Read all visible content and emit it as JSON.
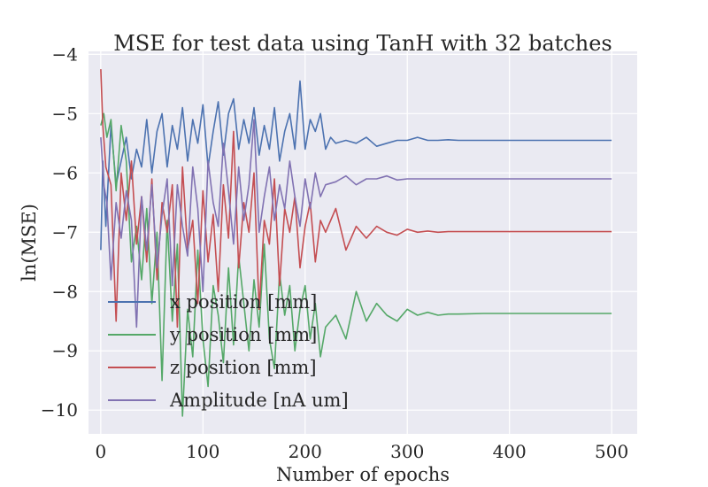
{
  "chart_data": {
    "type": "line",
    "title": "MSE for test data using TanH with 32 batches",
    "xlabel": "Number of epochs",
    "ylabel": "ln(MSE)",
    "xlim": [
      -12,
      525
    ],
    "ylim": [
      -10.4,
      -3.95
    ],
    "xticks": [
      0,
      100,
      200,
      300,
      400,
      500
    ],
    "yticks": [
      -10,
      -9,
      -8,
      -7,
      -6,
      -5,
      -4
    ],
    "xtick_labels": [
      "0",
      "100",
      "200",
      "300",
      "400",
      "500"
    ],
    "ytick_labels": [
      "−10",
      "−9",
      "−8",
      "−7",
      "−6",
      "−5",
      "−4"
    ],
    "grid": true,
    "legend_position": "lower-left",
    "series": [
      {
        "name": "x position [mm]",
        "color": "#4c72b0",
        "x": [
          0,
          2,
          5,
          10,
          15,
          20,
          25,
          30,
          35,
          40,
          45,
          50,
          55,
          60,
          65,
          70,
          75,
          80,
          85,
          90,
          95,
          100,
          105,
          110,
          115,
          120,
          125,
          130,
          135,
          140,
          145,
          150,
          155,
          160,
          165,
          170,
          175,
          180,
          185,
          190,
          195,
          200,
          205,
          210,
          215,
          220,
          225,
          230,
          240,
          250,
          260,
          270,
          280,
          290,
          300,
          310,
          320,
          330,
          340,
          350,
          375,
          400,
          450,
          500
        ],
        "y": [
          -7.3,
          -5.8,
          -6.9,
          -5.2,
          -6.2,
          -5.8,
          -5.4,
          -6.1,
          -5.6,
          -5.9,
          -5.1,
          -6.0,
          -5.3,
          -5.0,
          -5.9,
          -5.2,
          -5.6,
          -4.9,
          -5.8,
          -5.1,
          -5.5,
          -4.85,
          -5.9,
          -5.3,
          -4.8,
          -5.7,
          -5.0,
          -4.75,
          -5.6,
          -5.1,
          -5.5,
          -4.9,
          -5.7,
          -5.2,
          -5.6,
          -4.9,
          -5.8,
          -5.3,
          -5.0,
          -5.6,
          -4.45,
          -5.6,
          -5.1,
          -5.3,
          -5.0,
          -5.6,
          -5.4,
          -5.5,
          -5.45,
          -5.5,
          -5.4,
          -5.55,
          -5.5,
          -5.45,
          -5.45,
          -5.4,
          -5.45,
          -5.45,
          -5.44,
          -5.45,
          -5.45,
          -5.45,
          -5.45,
          -5.45
        ]
      },
      {
        "name": "y position [mm]",
        "color": "#55a868",
        "x": [
          0,
          3,
          6,
          10,
          15,
          20,
          25,
          30,
          35,
          40,
          45,
          50,
          55,
          60,
          65,
          70,
          75,
          80,
          85,
          90,
          95,
          100,
          105,
          110,
          115,
          120,
          125,
          130,
          135,
          140,
          145,
          150,
          155,
          160,
          165,
          170,
          175,
          180,
          185,
          190,
          195,
          200,
          205,
          210,
          215,
          220,
          230,
          240,
          250,
          260,
          270,
          280,
          290,
          300,
          310,
          320,
          330,
          340,
          350,
          375,
          400,
          450,
          500
        ],
        "y": [
          -5.2,
          -5.0,
          -5.4,
          -5.1,
          -6.3,
          -5.2,
          -5.8,
          -7.5,
          -6.9,
          -7.8,
          -6.6,
          -8.2,
          -7.0,
          -9.5,
          -6.8,
          -8.5,
          -7.2,
          -10.1,
          -8.3,
          -9.1,
          -7.3,
          -8.8,
          -9.6,
          -7.9,
          -8.4,
          -9.2,
          -7.6,
          -8.9,
          -7.4,
          -8.2,
          -9.0,
          -7.8,
          -8.6,
          -7.2,
          -8.8,
          -9.3,
          -7.7,
          -8.4,
          -7.9,
          -9.0,
          -8.3,
          -7.9,
          -8.8,
          -8.2,
          -9.1,
          -8.6,
          -8.4,
          -8.8,
          -8.0,
          -8.5,
          -8.2,
          -8.4,
          -8.5,
          -8.3,
          -8.4,
          -8.35,
          -8.4,
          -8.38,
          -8.38,
          -8.37,
          -8.37,
          -8.37,
          -8.37
        ]
      },
      {
        "name": "z position [mm]",
        "color": "#c44e52",
        "x": [
          0,
          2,
          5,
          10,
          15,
          20,
          25,
          30,
          35,
          40,
          45,
          50,
          55,
          60,
          65,
          70,
          75,
          80,
          85,
          90,
          95,
          100,
          105,
          110,
          115,
          120,
          125,
          130,
          135,
          140,
          145,
          150,
          155,
          160,
          165,
          170,
          175,
          180,
          185,
          190,
          195,
          200,
          205,
          210,
          215,
          220,
          230,
          240,
          250,
          260,
          270,
          280,
          290,
          300,
          310,
          320,
          330,
          340,
          350,
          375,
          400,
          450,
          500
        ],
        "y": [
          -4.25,
          -5.2,
          -5.9,
          -6.2,
          -8.5,
          -6.0,
          -6.8,
          -5.8,
          -7.2,
          -6.4,
          -7.5,
          -6.1,
          -7.8,
          -6.5,
          -7.0,
          -6.2,
          -8.6,
          -5.9,
          -7.3,
          -6.8,
          -8.2,
          -6.3,
          -7.5,
          -6.7,
          -8.0,
          -6.2,
          -7.1,
          -5.3,
          -7.6,
          -6.5,
          -7.0,
          -6.0,
          -8.3,
          -6.8,
          -7.2,
          -6.1,
          -7.9,
          -6.6,
          -7.0,
          -6.4,
          -7.6,
          -6.9,
          -6.5,
          -7.5,
          -6.8,
          -7.0,
          -6.6,
          -7.3,
          -6.9,
          -7.1,
          -6.9,
          -7.0,
          -7.05,
          -6.95,
          -7.0,
          -6.98,
          -7.0,
          -6.99,
          -6.99,
          -6.99,
          -6.99,
          -6.99,
          -6.99
        ]
      },
      {
        "name": "Amplitude [nA um]",
        "color": "#8172b2",
        "x": [
          0,
          3,
          6,
          10,
          15,
          20,
          25,
          30,
          35,
          40,
          45,
          50,
          55,
          60,
          65,
          70,
          75,
          80,
          85,
          90,
          95,
          100,
          105,
          110,
          115,
          120,
          125,
          130,
          135,
          140,
          145,
          150,
          155,
          160,
          165,
          170,
          175,
          180,
          185,
          190,
          195,
          200,
          205,
          210,
          215,
          220,
          230,
          240,
          250,
          260,
          270,
          280,
          290,
          300,
          310,
          320,
          330,
          340,
          350,
          375,
          400,
          450,
          500
        ],
        "y": [
          -5.4,
          -6.2,
          -6.5,
          -7.8,
          -6.5,
          -7.1,
          -6.3,
          -6.8,
          -8.6,
          -6.4,
          -7.3,
          -6.2,
          -7.6,
          -6.7,
          -6.1,
          -7.9,
          -6.2,
          -6.9,
          -7.4,
          -5.9,
          -6.6,
          -8.0,
          -5.8,
          -6.5,
          -6.9,
          -5.5,
          -6.3,
          -7.2,
          -5.9,
          -6.8,
          -6.2,
          -5.1,
          -7.0,
          -6.4,
          -5.9,
          -6.8,
          -6.2,
          -6.6,
          -5.8,
          -6.4,
          -6.9,
          -6.1,
          -6.6,
          -6.0,
          -6.4,
          -6.2,
          -6.15,
          -6.05,
          -6.2,
          -6.1,
          -6.1,
          -6.05,
          -6.12,
          -6.1,
          -6.1,
          -6.1,
          -6.1,
          -6.1,
          -6.1,
          -6.1,
          -6.1,
          -6.1,
          -6.1
        ]
      }
    ]
  }
}
